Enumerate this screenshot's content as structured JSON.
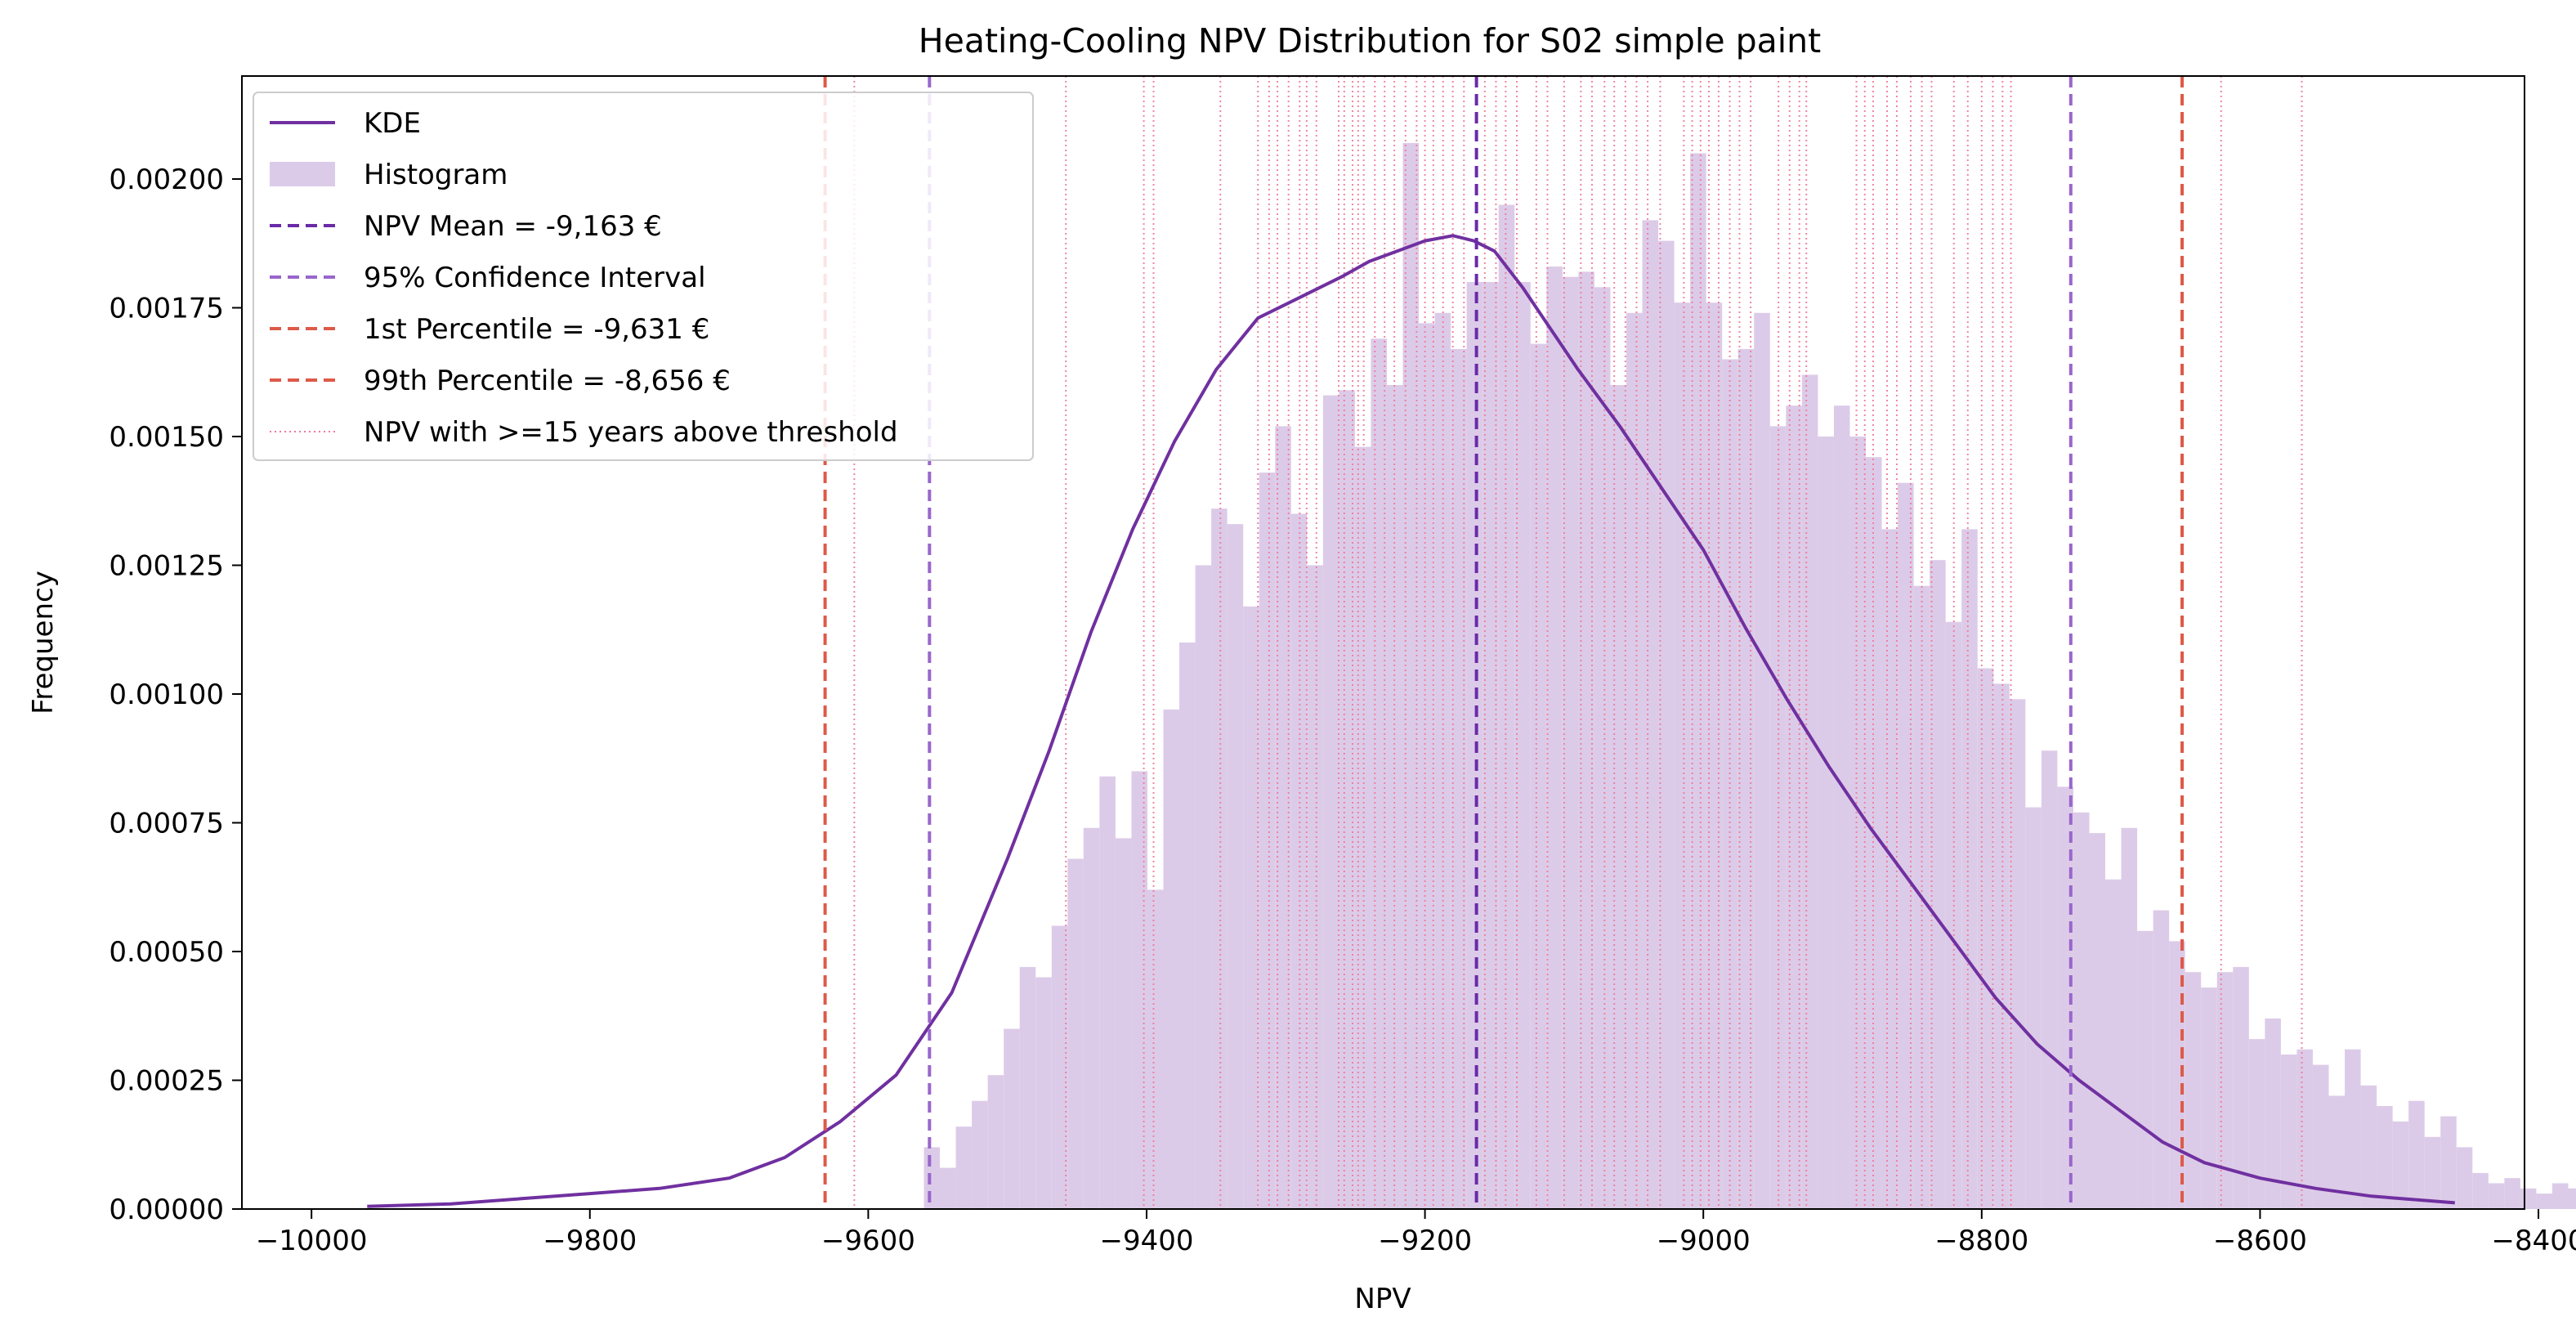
{
  "chart_data": {
    "type": "histogram",
    "title": "Heating-Cooling NPV Distribution for S02 simple paint",
    "xlabel": "NPV",
    "ylabel": "Frequency",
    "xlim": [
      -10050,
      -8410
    ],
    "ylim": [
      0,
      0.0022
    ],
    "x_ticks": [
      -10000,
      -9800,
      -9600,
      -9400,
      -9200,
      -9000,
      -8800,
      -8600,
      -8400
    ],
    "y_ticks": [
      0.0,
      0.00025,
      0.0005,
      0.00075,
      0.001,
      0.00125,
      0.0015,
      0.00175,
      0.002
    ],
    "x_tick_labels": [
      "−10000",
      "−9800",
      "−9600",
      "−9400",
      "−9200",
      "−9000",
      "−8800",
      "−8600",
      "−8400"
    ],
    "y_tick_labels": [
      "0.00000",
      "0.00025",
      "0.00050",
      "0.00075",
      "0.00100",
      "0.00125",
      "0.00150",
      "0.00175",
      "0.00200"
    ],
    "colors": {
      "kde": "#7030a0",
      "histogram": "#dccbe8",
      "mean": "#6a2aa8",
      "ci": "#9966cc",
      "percentile": "#dd5a48",
      "threshold": "#ee7a9a"
    },
    "histogram": {
      "bin_start": -9560,
      "bin_width": 11.47,
      "values": [
        0.00012,
        8e-05,
        0.00016,
        0.00021,
        0.00026,
        0.00035,
        0.00047,
        0.00045,
        0.00055,
        0.00068,
        0.00074,
        0.00084,
        0.00072,
        0.00085,
        0.00062,
        0.00097,
        0.0011,
        0.00125,
        0.00136,
        0.00133,
        0.00117,
        0.00143,
        0.00152,
        0.00135,
        0.00125,
        0.00158,
        0.00159,
        0.00148,
        0.00169,
        0.0016,
        0.00207,
        0.00172,
        0.00174,
        0.00167,
        0.0018,
        0.0018,
        0.00195,
        0.0018,
        0.00168,
        0.00183,
        0.00181,
        0.00182,
        0.00179,
        0.0016,
        0.00174,
        0.00192,
        0.00188,
        0.00176,
        0.00205,
        0.00176,
        0.00165,
        0.00167,
        0.00174,
        0.00152,
        0.00156,
        0.00162,
        0.0015,
        0.00156,
        0.0015,
        0.00146,
        0.00132,
        0.00141,
        0.00121,
        0.00126,
        0.00114,
        0.00132,
        0.00105,
        0.00102,
        0.00099,
        0.00078,
        0.00089,
        0.00082,
        0.00077,
        0.00073,
        0.00064,
        0.00074,
        0.00054,
        0.00058,
        0.00052,
        0.00046,
        0.00043,
        0.00046,
        0.00047,
        0.00033,
        0.00037,
        0.0003,
        0.00031,
        0.00028,
        0.00022,
        0.00031,
        0.00024,
        0.0002,
        0.00017,
        0.00021,
        0.00014,
        0.00018,
        0.00012,
        7e-05,
        5e-05,
        6e-05,
        4e-05,
        3e-05,
        5e-05,
        4e-05,
        3e-05
      ]
    },
    "kde": {
      "x": [
        -9960,
        -9900,
        -9850,
        -9800,
        -9750,
        -9700,
        -9660,
        -9620,
        -9580,
        -9540,
        -9500,
        -9470,
        -9440,
        -9410,
        -9380,
        -9350,
        -9320,
        -9290,
        -9260,
        -9240,
        -9220,
        -9200,
        -9180,
        -9165,
        -9150,
        -9130,
        -9110,
        -9090,
        -9060,
        -9030,
        -9000,
        -8970,
        -8940,
        -8910,
        -8880,
        -8850,
        -8820,
        -8790,
        -8760,
        -8730,
        -8700,
        -8670,
        -8640,
        -8600,
        -8560,
        -8520,
        -8460
      ],
      "y": [
        5e-06,
        1e-05,
        2e-05,
        3e-05,
        4e-05,
        6e-05,
        0.0001,
        0.00017,
        0.00026,
        0.00042,
        0.00068,
        0.00089,
        0.00112,
        0.00132,
        0.00149,
        0.00163,
        0.00173,
        0.00177,
        0.00181,
        0.00184,
        0.00186,
        0.00188,
        0.00189,
        0.00188,
        0.00186,
        0.00179,
        0.00171,
        0.00163,
        0.00152,
        0.0014,
        0.00128,
        0.00113,
        0.00099,
        0.00086,
        0.00074,
        0.00063,
        0.00052,
        0.00041,
        0.00032,
        0.00025,
        0.00019,
        0.00013,
        9e-05,
        6e-05,
        4e-05,
        2.5e-05,
        1.2e-05
      ]
    },
    "vlines": {
      "mean": -9163,
      "ci": [
        -9556,
        -8736
      ],
      "p1": -9631,
      "p99": -8656,
      "threshold_npv": [
        -9610,
        -9458,
        -9402,
        -9395,
        -9347,
        -9320,
        -9312,
        -9306,
        -9298,
        -9290,
        -9285,
        -9278,
        -9262,
        -9258,
        -9252,
        -9248,
        -9244,
        -9236,
        -9229,
        -9222,
        -9214,
        -9206,
        -9200,
        -9194,
        -9187,
        -9180,
        -9172,
        -9157,
        -9149,
        -9142,
        -9134,
        -9120,
        -9112,
        -9100,
        -9088,
        -9080,
        -9071,
        -9064,
        -9056,
        -9048,
        -9040,
        -9031,
        -9014,
        -9008,
        -9002,
        -8996,
        -8989,
        -8981,
        -8974,
        -8966,
        -8946,
        -8938,
        -8931,
        -8926,
        -8890,
        -8884,
        -8878,
        -8868,
        -8861,
        -8851,
        -8843,
        -8836,
        -8820,
        -8810,
        -8800,
        -8792,
        -8785,
        -8779,
        -8628,
        -8570
      ]
    },
    "legend": {
      "position": "upper-left",
      "entries": [
        {
          "label": "KDE",
          "style": "line"
        },
        {
          "label": "Histogram",
          "style": "patch"
        },
        {
          "label": "NPV Mean = -9,163 €",
          "style": "dashed-mean"
        },
        {
          "label": "95% Confidence Interval",
          "style": "dashed-ci"
        },
        {
          "label": "1st Percentile = -9,631 €",
          "style": "dashed-percentile"
        },
        {
          "label": "99th Percentile = -8,656 €",
          "style": "dashed-percentile"
        },
        {
          "label": "NPV with >=15 years above threshold",
          "style": "dotted-threshold"
        }
      ]
    }
  }
}
